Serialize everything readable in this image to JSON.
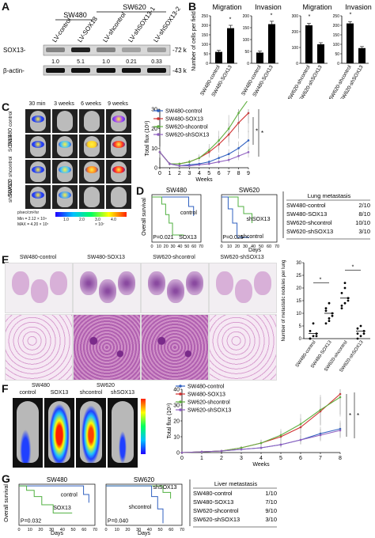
{
  "panels": {
    "A": {
      "label": "A",
      "group_sw480": "SW480",
      "group_sw620": "SW620",
      "lanes": [
        "LV-control",
        "LV-SOX13",
        "LV-shcontrol",
        "LV-shSOX13-1",
        "LV-shSOX13-2"
      ],
      "rows": [
        {
          "name": "SOX13-",
          "size": "-72 kD",
          "quant": [
            "1.0",
            "5.1",
            "1.0",
            "0.21",
            "0.33"
          ]
        },
        {
          "name": "β-actin-",
          "size": "-43 kD"
        }
      ]
    },
    "B": {
      "label": "B",
      "titles": [
        "Migration",
        "Invasion",
        "Migration",
        "Invasion"
      ],
      "ylabel": "Number of cells per field",
      "chart_data": [
        {
          "type": "bar",
          "title": "Migration",
          "categories": [
            "SW480-control",
            "SW480-SOX13"
          ],
          "values": [
            60,
            185
          ],
          "errors": [
            8,
            15
          ],
          "ylim": [
            0,
            250
          ],
          "yticks": [
            0,
            50,
            100,
            150,
            200,
            250
          ]
        },
        {
          "type": "bar",
          "title": "Invasion",
          "categories": [
            "SW480-control",
            "SW480-SOX13"
          ],
          "values": [
            45,
            165
          ],
          "errors": [
            6,
            12
          ],
          "ylim": [
            0,
            200
          ],
          "yticks": [
            0,
            50,
            100,
            150,
            200
          ]
        },
        {
          "type": "bar",
          "title": "Migration",
          "categories": [
            "SW620-shcontrol",
            "SW620-shSOX13"
          ],
          "values": [
            240,
            120
          ],
          "errors": [
            12,
            10
          ],
          "ylim": [
            0,
            300
          ],
          "yticks": [
            0,
            100,
            200,
            300
          ]
        },
        {
          "type": "bar",
          "title": "Invasion",
          "categories": [
            "SW620-shcontrol",
            "SW620-shSOX13"
          ],
          "values": [
            210,
            80
          ],
          "errors": [
            10,
            8
          ],
          "ylim": [
            0,
            250
          ],
          "yticks": [
            0,
            50,
            100,
            150,
            200,
            250
          ]
        }
      ]
    },
    "C": {
      "label": "C",
      "timepoints": [
        "30 min",
        "3 weeks",
        "6 weeks",
        "9 weeks"
      ],
      "rows": [
        "control",
        "SOX13",
        "shcontrol",
        "shSOX13"
      ],
      "groups": [
        "SW480",
        "SW620"
      ],
      "scale_label": "p/sec/cm²/sr",
      "scale_min": "Min = 2.12 × 10⁴",
      "scale_max": "MAX = 4.20 × 10⁷",
      "scale_ticks": [
        "1.0",
        "2.0",
        "3.0",
        "4.0"
      ],
      "scale_unit": "× 10⁷",
      "chart_data": {
        "type": "line",
        "ylabel": "Total flux (10⁸)",
        "xlabel": "Weeks",
        "x": [
          0,
          1,
          2,
          3,
          4,
          5,
          6,
          7,
          8,
          9
        ],
        "ylim": [
          0,
          30
        ],
        "yticks": [
          0,
          10,
          20,
          30
        ],
        "series": [
          {
            "name": "SW480-control",
            "color": "#3060c0",
            "values": [
              8,
              2,
              1,
              1.5,
              2,
              3,
              5,
              7,
              10,
              14
            ]
          },
          {
            "name": "SW480-SOX13",
            "color": "#d03030",
            "values": [
              8,
              2,
              2,
              3,
              5,
              8,
              12,
              17,
              23,
              28
            ]
          },
          {
            "name": "SW620-shcontrol",
            "color": "#60b040",
            "values": [
              8,
              2,
              2,
              3,
              5,
              9,
              14,
              20,
              28,
              35
            ]
          },
          {
            "name": "SW620-shSOX13",
            "color": "#9060c0",
            "values": [
              8,
              2,
              1,
              1,
              1.5,
              2,
              3,
              4,
              6,
              8
            ]
          }
        ]
      }
    },
    "D": {
      "label": "D",
      "ylabel": "Overall survival",
      "xlabel": "Days",
      "charts": [
        {
          "title": "SW480",
          "p": "P=0.021",
          "curves": [
            "control",
            "SOX13"
          ],
          "xticks": [
            "0",
            "10",
            "20",
            "30",
            "40",
            "50",
            "60",
            "70"
          ]
        },
        {
          "title": "SW620",
          "p": "P=0.025",
          "curves": [
            "shSOX13",
            "shcontrol"
          ],
          "xticks": [
            "0",
            "10",
            "20",
            "30",
            "40",
            "50",
            "60",
            "70"
          ]
        }
      ],
      "table": {
        "title": "Lung metastasis",
        "rows": [
          [
            "SW480-control",
            "2/10"
          ],
          [
            "SW480-SOX13",
            "8/10"
          ],
          [
            "SW620-shcontrol",
            "10/10"
          ],
          [
            "SW620-shSOX13",
            "3/10"
          ]
        ]
      }
    },
    "E": {
      "label": "E",
      "headers": [
        "SW480-control",
        "SW480-SOX13",
        "SW620-shcontrol",
        "SW620-shSOX13"
      ],
      "ylabel": "Number of metastatic nodules per lung",
      "chart_data": {
        "type": "scatter",
        "categories": [
          "SW480-control",
          "SW480-SOX13",
          "SW620-shcontrol",
          "SW620-shSOX13"
        ],
        "means": [
          2,
          10,
          16,
          3
        ],
        "points": [
          [
            0,
            1,
            2,
            3,
            6,
            1,
            0
          ],
          [
            6,
            8,
            10,
            12,
            14,
            9,
            11,
            7
          ],
          [
            12,
            14,
            16,
            18,
            20,
            15,
            13,
            22
          ],
          [
            0,
            1,
            2,
            4,
            5,
            3,
            2
          ]
        ],
        "ylim": [
          0,
          30
        ],
        "yticks": [
          0,
          5,
          10,
          15,
          20,
          25,
          30
        ]
      }
    },
    "F": {
      "label": "F",
      "groups": [
        "SW480",
        "SW620"
      ],
      "mice": [
        "control",
        "SOX13",
        "shcontrol",
        "shSOX13"
      ],
      "chart_data": {
        "type": "line",
        "ylabel": "Total flux (10⁹)",
        "xlabel": "Weeks",
        "x": [
          0,
          1,
          2,
          3,
          4,
          5,
          6,
          7,
          8
        ],
        "ylim": [
          0,
          40
        ],
        "yticks": [
          0,
          10,
          20,
          30,
          40
        ],
        "series": [
          {
            "name": "SW480-control",
            "color": "#3060c0",
            "values": [
              0,
              0.5,
              1,
              2,
              3,
              5,
              8,
              12,
              15
            ]
          },
          {
            "name": "SW480-SOX13",
            "color": "#d03030",
            "values": [
              0,
              0.5,
              1,
              3,
              6,
              10,
              16,
              26,
              37
            ]
          },
          {
            "name": "SW620-shcontrol",
            "color": "#60b040",
            "values": [
              0,
              0.5,
              1,
              3,
              6,
              11,
              18,
              27,
              35
            ]
          },
          {
            "name": "SW620-shSOX13",
            "color": "#9060c0",
            "values": [
              0,
              0.5,
              1,
              2,
              3,
              5,
              8,
              11,
              14
            ]
          }
        ]
      }
    },
    "G": {
      "label": "G",
      "ylabel": "Overall survival",
      "xlabel": "Days",
      "charts": [
        {
          "title": "SW480",
          "p": "P=0.032",
          "curves": [
            "control",
            "SOX13"
          ],
          "xticks": [
            "0",
            "10",
            "20",
            "30",
            "40",
            "50",
            "60",
            "70"
          ]
        },
        {
          "title": "SW620",
          "p": "P=0.040",
          "curves": [
            "shSOX13",
            "shcontrol"
          ],
          "xticks": [
            "0",
            "10",
            "20",
            "30",
            "40",
            "50",
            "60",
            "70"
          ]
        }
      ],
      "table": {
        "title": "Liver metastasis",
        "rows": [
          [
            "SW480-control",
            "1/10"
          ],
          [
            "SW480-SOX13",
            "7/10"
          ],
          [
            "SW620-shcontrol",
            "9/10"
          ],
          [
            "SW620-shSOX13",
            "3/10"
          ]
        ]
      }
    }
  }
}
